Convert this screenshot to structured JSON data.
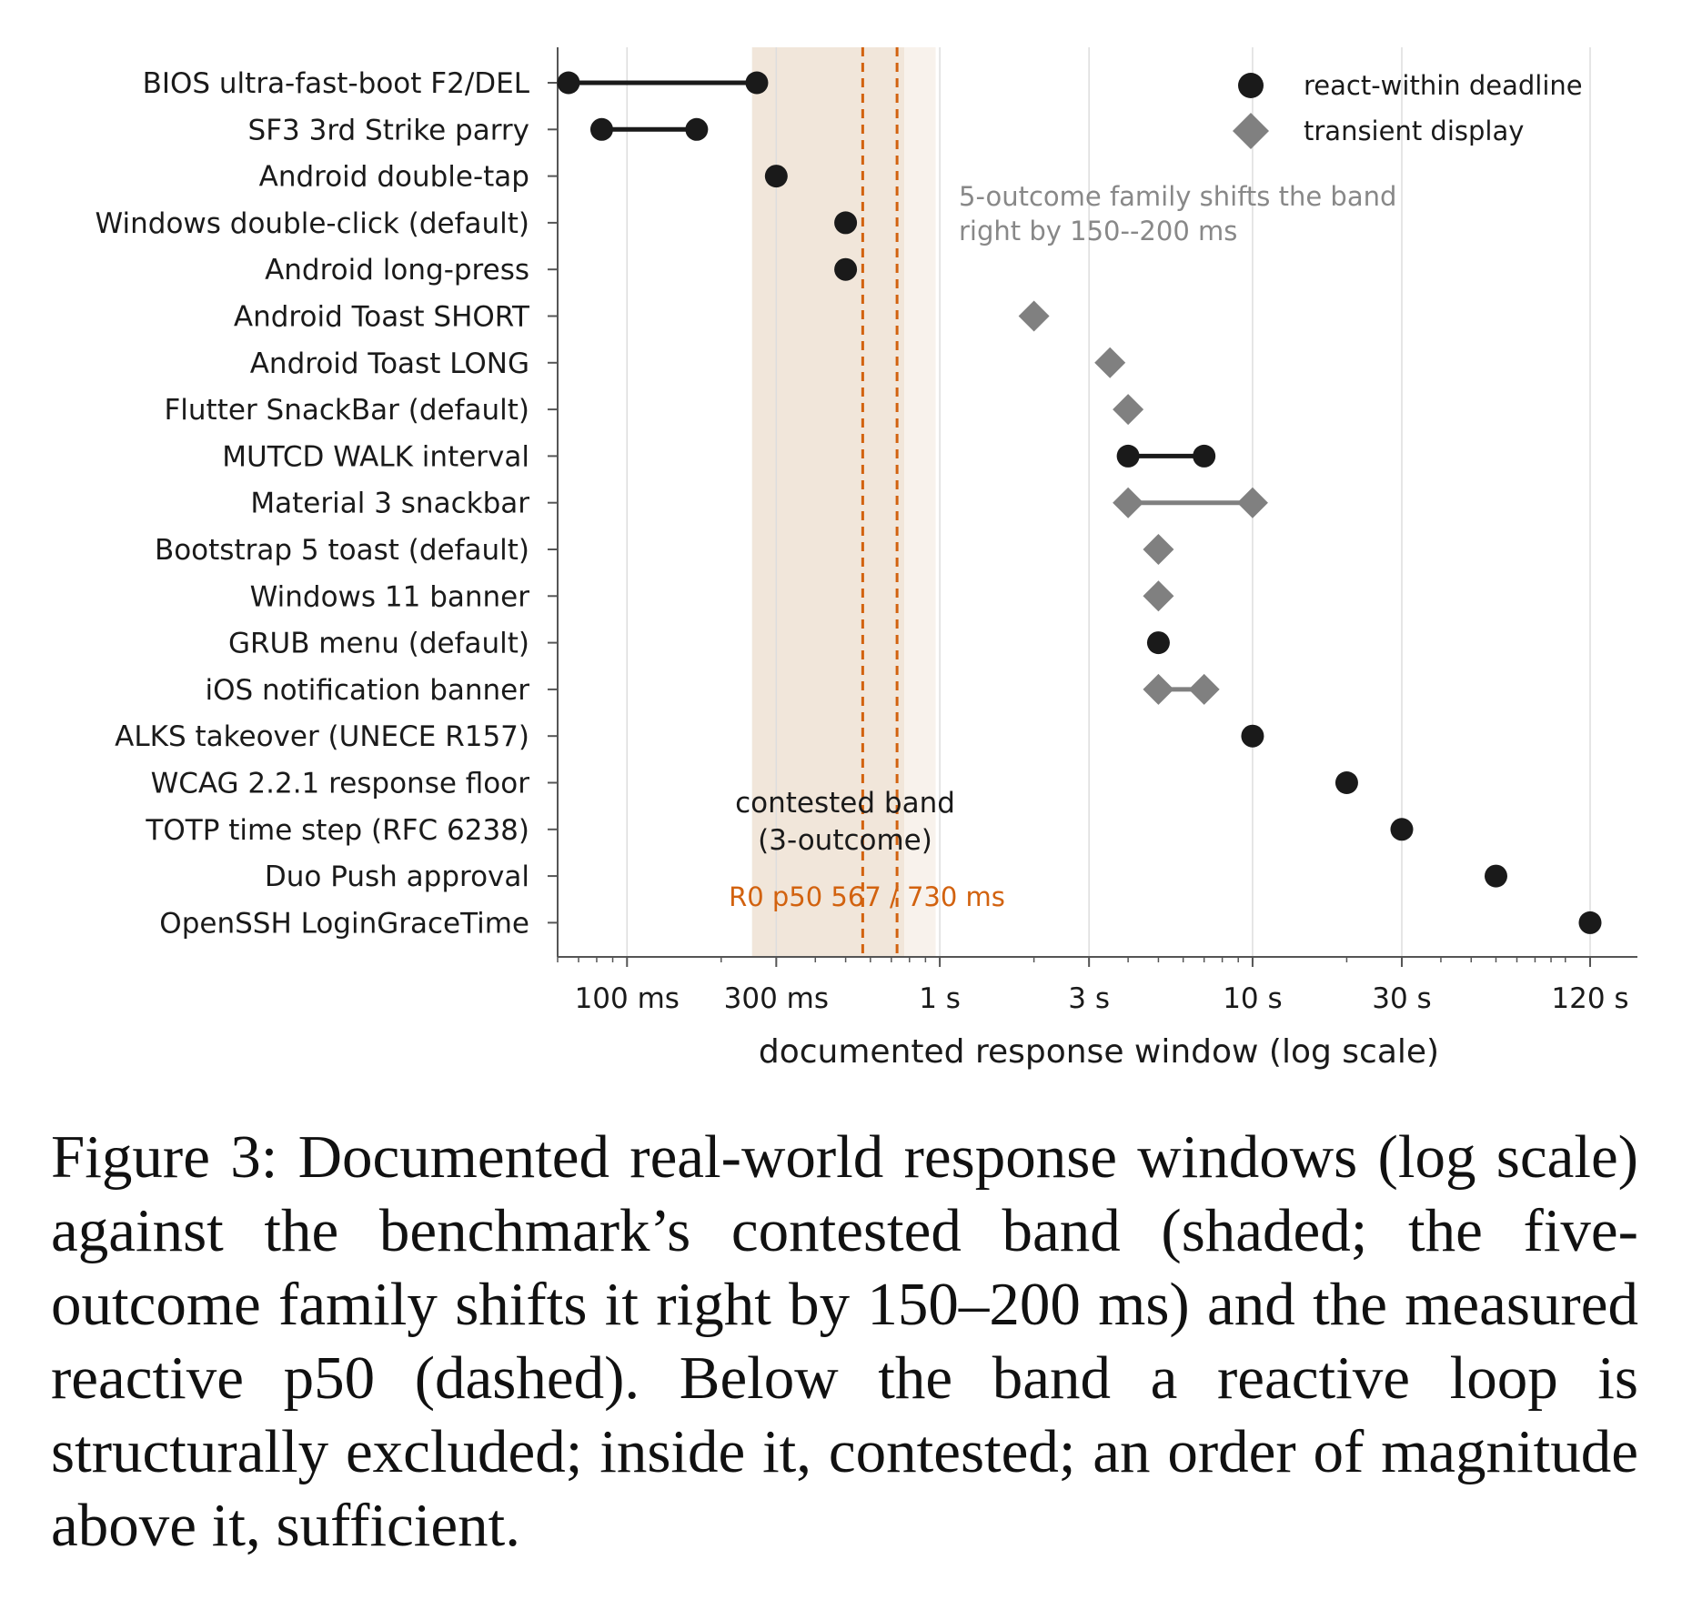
{
  "chart_data": {
    "type": "scatter",
    "xlabel": "documented response window (log scale)",
    "xscale": "log",
    "xlim_ms": [
      60,
      170000
    ],
    "x_ticks": [
      {
        "value_ms": 100,
        "label": "100 ms"
      },
      {
        "value_ms": 300,
        "label": "300 ms"
      },
      {
        "value_ms": 1000,
        "label": "1 s"
      },
      {
        "value_ms": 3000,
        "label": "3 s"
      },
      {
        "value_ms": 10000,
        "label": "10 s"
      },
      {
        "value_ms": 30000,
        "label": "30 s"
      },
      {
        "value_ms": 120000,
        "label": "120 s"
      }
    ],
    "grid": "vertical major gridlines",
    "legend_position": "top-right",
    "legend": [
      {
        "key": "react",
        "label": "react-within deadline",
        "marker": "circle",
        "color": "#1a1a1a"
      },
      {
        "key": "transient",
        "label": "transient display",
        "marker": "diamond",
        "color": "#808080"
      }
    ],
    "contested_band_ms": [
      251,
      770
    ],
    "shifted_band_extension_ms": [
      770,
      970
    ],
    "r0_p50_ms": [
      567,
      730
    ],
    "annotations": {
      "shift_line1": "5-outcome family shifts the band",
      "shift_line2": "right by 150--200 ms",
      "band_line1": "contested band",
      "band_line2": "(3-outcome)",
      "p50": "R0 p50 567 / 730 ms"
    },
    "rows": [
      {
        "label": "BIOS ultra-fast-boot F2/DEL",
        "kind": "react",
        "values_ms": [
          65,
          260
        ]
      },
      {
        "label": "SF3 3rd Strike parry",
        "kind": "react",
        "values_ms": [
          83,
          167
        ]
      },
      {
        "label": "Android double-tap",
        "kind": "react",
        "values_ms": [
          300
        ]
      },
      {
        "label": "Windows double-click (default)",
        "kind": "react",
        "values_ms": [
          500
        ]
      },
      {
        "label": "Android long-press",
        "kind": "react",
        "values_ms": [
          500
        ]
      },
      {
        "label": "Android Toast SHORT",
        "kind": "transient",
        "values_ms": [
          2000
        ]
      },
      {
        "label": "Android Toast LONG",
        "kind": "transient",
        "values_ms": [
          3500
        ]
      },
      {
        "label": "Flutter SnackBar (default)",
        "kind": "transient",
        "values_ms": [
          4000
        ]
      },
      {
        "label": "MUTCD WALK interval",
        "kind": "react",
        "values_ms": [
          4000,
          7000
        ]
      },
      {
        "label": "Material 3 snackbar",
        "kind": "transient",
        "values_ms": [
          4000,
          10000
        ]
      },
      {
        "label": "Bootstrap 5 toast (default)",
        "kind": "transient",
        "values_ms": [
          5000
        ]
      },
      {
        "label": "Windows 11 banner",
        "kind": "transient",
        "values_ms": [
          5000
        ]
      },
      {
        "label": "GRUB menu (default)",
        "kind": "react",
        "values_ms": [
          5000
        ]
      },
      {
        "label": "iOS notification banner",
        "kind": "transient",
        "values_ms": [
          5000,
          7000
        ]
      },
      {
        "label": "ALKS takeover (UNECE R157)",
        "kind": "react",
        "values_ms": [
          10000
        ]
      },
      {
        "label": "WCAG 2.2.1 response floor",
        "kind": "react",
        "values_ms": [
          20000
        ]
      },
      {
        "label": "TOTP time step (RFC 6238)",
        "kind": "react",
        "values_ms": [
          30000
        ]
      },
      {
        "label": "Duo Push approval",
        "kind": "react",
        "values_ms": [
          60000
        ]
      },
      {
        "label": "OpenSSH LoginGraceTime",
        "kind": "react",
        "values_ms": [
          120000
        ]
      }
    ],
    "colors": {
      "react": "#1a1a1a",
      "transient": "#808080",
      "band": "#f1e6da",
      "band_extension": "#f8f2ec",
      "p50_line": "#d2620f",
      "grid": "#dddddd",
      "axis": "#555555"
    }
  },
  "caption": "Figure 3: Documented real-world response windows (log scale) against the benchmark’s contested band (shaded; the five-outcome family shifts it right by 150–200 ms) and the measured reactive p50 (dashed). Below the band a reactive loop is structurally excluded; inside it, contested; an order of magnitude above it, sufficient."
}
